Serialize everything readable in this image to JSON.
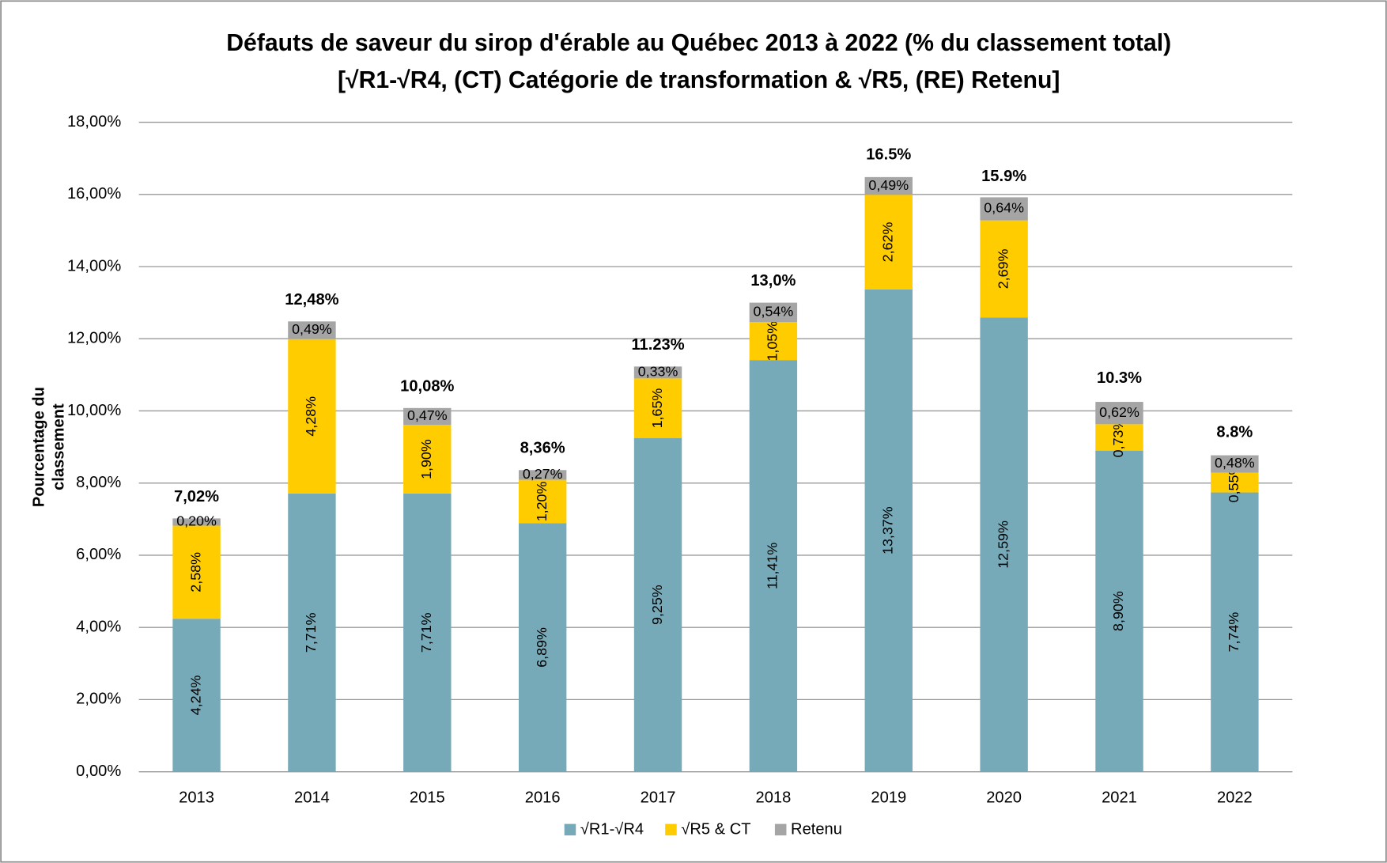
{
  "chart_data": {
    "type": "stacked_bar",
    "title": [
      "Défauts de saveur du sirop d'érable au Québec 2013 à 2022 (% du classement total)",
      "[√R1-√R4, (CT) Catégorie de transformation & √R5, (RE) Retenu]"
    ],
    "y_label": [
      "Pourcentage du",
      "classement"
    ],
    "categories": [
      "2013",
      "2014",
      "2015",
      "2016",
      "2017",
      "2018",
      "2019",
      "2020",
      "2021",
      "2022"
    ],
    "series": [
      {
        "name": "√R1-√R4",
        "color": "#77aab8",
        "values": [
          4.24,
          7.71,
          7.71,
          6.89,
          9.25,
          11.41,
          13.37,
          12.59,
          8.9,
          7.74
        ],
        "value_labels": [
          "4,24%",
          "7,71%",
          "7,71%",
          "6,89%",
          "9,25%",
          "11,41%",
          "13,37%",
          "12,59%",
          "8,90%",
          "7,74%"
        ]
      },
      {
        "name": "√R5 & CT",
        "color": "#ffcc00",
        "values": [
          2.58,
          4.28,
          1.9,
          1.2,
          1.65,
          1.05,
          2.62,
          2.69,
          0.73,
          0.55
        ],
        "value_labels": [
          "2,58%",
          "4,28%",
          "1,90%",
          "1,20%",
          "1,65%",
          "1,05%",
          "2,62%",
          "2,69%",
          "0,73%",
          "0,55%"
        ]
      },
      {
        "name": "Retenu",
        "color": "#a5a5a5",
        "values": [
          0.2,
          0.49,
          0.47,
          0.27,
          0.33,
          0.54,
          0.49,
          0.64,
          0.62,
          0.48
        ],
        "value_labels": [
          "0,20%",
          "0,49%",
          "0,47%",
          "0,27%",
          "0,33%",
          "0,54%",
          "0,49%",
          "0,64%",
          "0,62%",
          "0,48%"
        ]
      }
    ],
    "totals": [
      7.02,
      12.48,
      10.08,
      8.36,
      11.23,
      13.0,
      16.5,
      15.9,
      10.3,
      8.8
    ],
    "total_labels": [
      "7,02%",
      "12,48%",
      "10,08%",
      "8,36%",
      "11.23%",
      "13,0%",
      "16.5%",
      "15.9%",
      "10.3%",
      "8.8%"
    ],
    "ylim": [
      0,
      18
    ],
    "yticks": [
      {
        "value": 0,
        "label": "0,00%"
      },
      {
        "value": 2,
        "label": "2,00%"
      },
      {
        "value": 4,
        "label": "4,00%"
      },
      {
        "value": 6,
        "label": "6,00%"
      },
      {
        "value": 8,
        "label": "8,00%"
      },
      {
        "value": 10,
        "label": "10,00%"
      },
      {
        "value": 12,
        "label": "12,00%"
      },
      {
        "value": 14,
        "label": "14,00%"
      },
      {
        "value": 16,
        "label": "16,00%"
      },
      {
        "value": 18,
        "label": "18,00%"
      }
    ],
    "grid": true,
    "legend": "bottom"
  }
}
